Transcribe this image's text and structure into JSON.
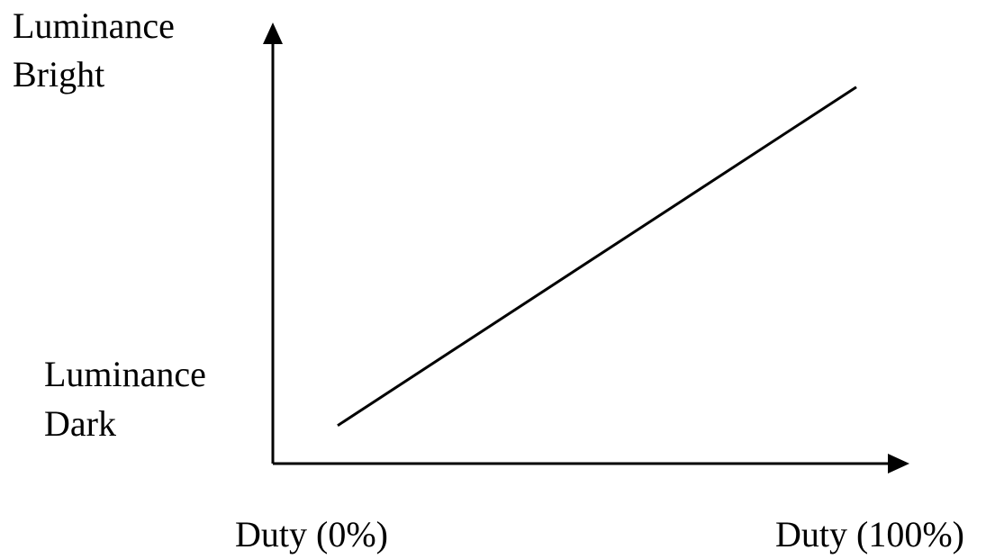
{
  "chart_data": {
    "type": "line",
    "x_axis": {
      "min_label": "Duty (0%)",
      "max_label": "Duty (100%)",
      "range": [
        0,
        100
      ],
      "unit": "%"
    },
    "y_axis": {
      "top_label_lines": [
        "Luminance",
        "Bright"
      ],
      "bottom_label_lines": [
        "Luminance",
        "Dark"
      ]
    },
    "series": [
      {
        "x": [
          10,
          90
        ],
        "y": [
          0.09,
          0.89
        ]
      }
    ],
    "grid": false,
    "legend": "none",
    "colors": {
      "line": "#000000",
      "axes": "#000000"
    }
  }
}
